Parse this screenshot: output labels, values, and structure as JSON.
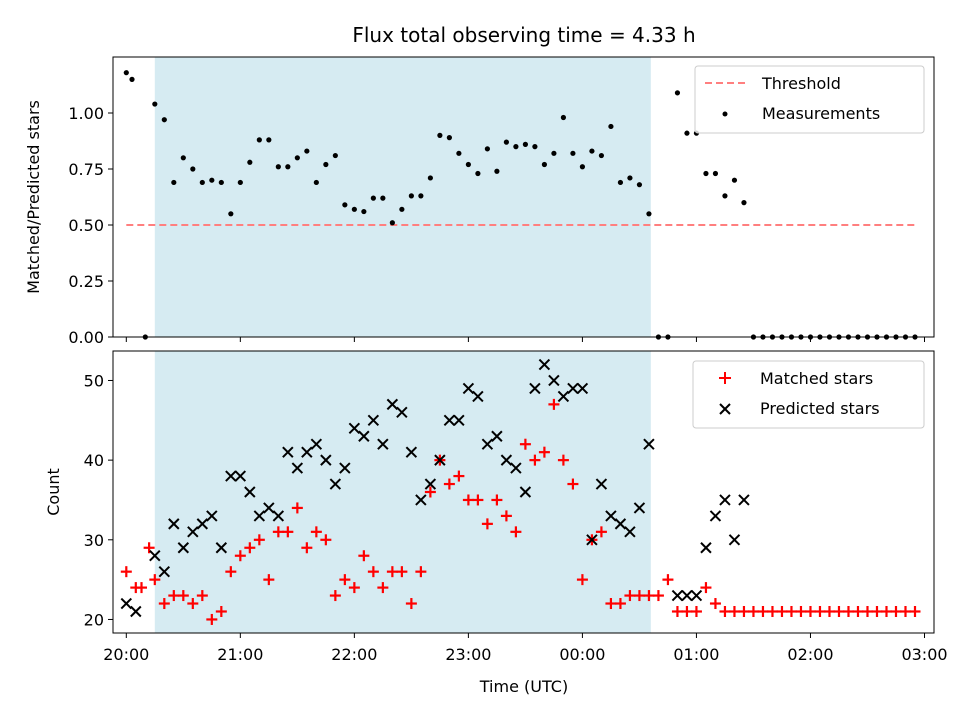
{
  "title": "Flux total observing time = 4.33 h",
  "xlabel": "Time (UTC)",
  "shade_color": "#add8e6",
  "top": {
    "ylabel": "Matched/Predicted stars",
    "legend": [
      "Threshold",
      "Measurements"
    ]
  },
  "bottom": {
    "ylabel": "Count",
    "legend": [
      "Matched stars",
      "Predicted stars"
    ]
  },
  "chart_data": [
    {
      "type": "scatter",
      "title": "Flux total observing time = 4.33 h",
      "xlabel": "",
      "ylabel": "Matched/Predicted stars",
      "xlim": [
        "19:53",
        "03:05"
      ],
      "ylim": [
        0,
        1.25
      ],
      "x_ticks": [
        "20:00",
        "21:00",
        "22:00",
        "23:00",
        "00:00",
        "01:00",
        "02:00",
        "03:00"
      ],
      "y_ticks": [
        "0.00",
        "0.25",
        "0.50",
        "0.75",
        "1.00"
      ],
      "shaded_interval": [
        "20:15",
        "00:36"
      ],
      "legend_position": "top-right",
      "threshold": {
        "name": "Threshold",
        "value": 0.5,
        "x_range": [
          "20:00",
          "02:55"
        ],
        "color": "#ff7f7f",
        "style": "dashed"
      },
      "series": [
        {
          "name": "Measurements",
          "color": "#000000",
          "x": [
            "20:00",
            "20:03",
            "20:10",
            "20:15",
            "20:20",
            "20:25",
            "20:30",
            "20:35",
            "20:40",
            "20:45",
            "20:50",
            "20:55",
            "21:00",
            "21:05",
            "21:10",
            "21:15",
            "21:20",
            "21:25",
            "21:30",
            "21:35",
            "21:40",
            "21:45",
            "21:50",
            "21:55",
            "22:00",
            "22:05",
            "22:10",
            "22:15",
            "22:20",
            "22:25",
            "22:30",
            "22:35",
            "22:40",
            "22:45",
            "22:50",
            "22:55",
            "23:00",
            "23:05",
            "23:10",
            "23:15",
            "23:20",
            "23:25",
            "23:30",
            "23:35",
            "23:40",
            "23:45",
            "23:50",
            "23:55",
            "00:00",
            "00:05",
            "00:10",
            "00:15",
            "00:20",
            "00:25",
            "00:30",
            "00:35",
            "00:40",
            "00:45",
            "00:50",
            "00:55",
            "01:00",
            "01:05",
            "01:10",
            "01:15",
            "01:20",
            "01:25",
            "01:30",
            "01:35",
            "01:40",
            "01:45",
            "01:50",
            "01:55",
            "02:00",
            "02:05",
            "02:10",
            "02:15",
            "02:20",
            "02:25",
            "02:30",
            "02:35",
            "02:40",
            "02:45",
            "02:50",
            "02:55"
          ],
          "y": [
            1.18,
            1.15,
            0.0,
            1.04,
            0.97,
            0.69,
            0.8,
            0.75,
            0.69,
            0.7,
            0.69,
            0.55,
            0.69,
            0.78,
            0.88,
            0.88,
            0.76,
            0.76,
            0.8,
            0.83,
            0.69,
            0.77,
            0.81,
            0.59,
            0.57,
            0.56,
            0.62,
            0.62,
            0.51,
            0.57,
            0.63,
            0.63,
            0.71,
            0.9,
            0.89,
            0.82,
            0.77,
            0.73,
            0.84,
            0.74,
            0.87,
            0.85,
            0.86,
            0.85,
            0.77,
            0.82,
            0.98,
            0.82,
            0.76,
            0.83,
            0.81,
            0.94,
            0.69,
            0.71,
            0.68,
            0.55,
            0.0,
            0.0,
            1.09,
            0.91,
            0.91,
            0.73,
            0.73,
            0.63,
            0.7,
            0.6,
            0.0,
            0.0,
            0.0,
            0.0,
            0.0,
            0.0,
            0.0,
            0.0,
            0.0,
            0.0,
            0.0,
            0.0,
            0.0,
            0.0,
            0.0,
            0.0,
            0.0,
            0.0
          ]
        }
      ]
    },
    {
      "type": "scatter",
      "title": "",
      "xlabel": "Time (UTC)",
      "ylabel": "Count",
      "xlim": [
        "19:53",
        "03:05"
      ],
      "ylim": [
        18.3,
        53.7
      ],
      "x_ticks": [
        "20:00",
        "21:00",
        "22:00",
        "23:00",
        "00:00",
        "01:00",
        "02:00",
        "03:00"
      ],
      "y_ticks": [
        "20",
        "30",
        "40",
        "50"
      ],
      "shaded_interval": [
        "20:15",
        "00:36"
      ],
      "legend_position": "top-right",
      "series": [
        {
          "name": "Matched stars",
          "color": "#ff0000",
          "marker": "+",
          "x": [
            "20:00",
            "20:05",
            "20:08",
            "20:12",
            "20:15",
            "20:20",
            "20:25",
            "20:30",
            "20:35",
            "20:40",
            "20:45",
            "20:50",
            "20:55",
            "21:00",
            "21:05",
            "21:10",
            "21:15",
            "21:20",
            "21:25",
            "21:30",
            "21:35",
            "21:40",
            "21:45",
            "21:50",
            "21:55",
            "22:00",
            "22:05",
            "22:10",
            "22:15",
            "22:20",
            "22:25",
            "22:30",
            "22:35",
            "22:40",
            "22:45",
            "22:50",
            "22:55",
            "23:00",
            "23:05",
            "23:10",
            "23:15",
            "23:20",
            "23:25",
            "23:30",
            "23:35",
            "23:40",
            "23:45",
            "23:50",
            "23:55",
            "00:00",
            "00:05",
            "00:10",
            "00:15",
            "00:20",
            "00:25",
            "00:30",
            "00:35",
            "00:40",
            "00:45",
            "00:50",
            "00:55",
            "01:00",
            "01:05",
            "01:10",
            "01:15",
            "01:20",
            "01:25",
            "01:30",
            "01:35",
            "01:40",
            "01:45",
            "01:50",
            "01:55",
            "02:00",
            "02:05",
            "02:10",
            "02:15",
            "02:20",
            "02:25",
            "02:30",
            "02:35",
            "02:40",
            "02:45",
            "02:50",
            "02:55"
          ],
          "y": [
            26,
            24,
            24,
            29,
            25,
            22,
            23,
            23,
            22,
            23,
            20,
            21,
            26,
            28,
            29,
            30,
            25,
            31,
            31,
            34,
            29,
            31,
            30,
            23,
            25,
            24,
            28,
            26,
            24,
            26,
            26,
            22,
            26,
            36,
            40,
            37,
            38,
            35,
            35,
            32,
            35,
            33,
            31,
            42,
            40,
            41,
            47,
            40,
            37,
            25,
            30,
            31,
            22,
            22,
            23,
            23,
            23,
            23,
            25,
            21,
            21,
            21,
            24,
            22,
            21,
            21,
            21,
            21,
            21,
            21,
            21,
            21,
            21,
            21,
            21,
            21,
            21,
            21,
            21,
            21,
            21,
            21,
            21,
            21,
            21
          ]
        },
        {
          "name": "Predicted stars",
          "color": "#000000",
          "marker": "x",
          "x": [
            "20:00",
            "20:05",
            "20:15",
            "20:20",
            "20:25",
            "20:30",
            "20:35",
            "20:40",
            "20:45",
            "20:50",
            "20:55",
            "21:00",
            "21:05",
            "21:10",
            "21:15",
            "21:20",
            "21:25",
            "21:30",
            "21:35",
            "21:40",
            "21:45",
            "21:50",
            "21:55",
            "22:00",
            "22:05",
            "22:10",
            "22:15",
            "22:20",
            "22:25",
            "22:30",
            "22:35",
            "22:40",
            "22:45",
            "22:50",
            "22:55",
            "23:00",
            "23:05",
            "23:10",
            "23:15",
            "23:20",
            "23:25",
            "23:30",
            "23:35",
            "23:40",
            "23:45",
            "23:50",
            "23:55",
            "00:00",
            "00:05",
            "00:10",
            "00:15",
            "00:20",
            "00:25",
            "00:30",
            "00:35",
            "00:50",
            "00:55",
            "01:00",
            "01:05",
            "01:10",
            "01:15",
            "01:20",
            "01:25"
          ],
          "y": [
            22,
            21,
            28,
            26,
            32,
            29,
            31,
            32,
            33,
            29,
            38,
            38,
            36,
            33,
            34,
            33,
            41,
            39,
            41,
            42,
            40,
            37,
            39,
            44,
            43,
            45,
            42,
            47,
            46,
            41,
            35,
            37,
            40,
            45,
            45,
            49,
            48,
            42,
            43,
            40,
            39,
            36,
            49,
            52,
            50,
            48,
            49,
            49,
            30,
            37,
            33,
            32,
            31,
            34,
            42,
            23,
            23,
            23,
            29,
            33,
            35,
            30,
            35
          ]
        }
      ]
    }
  ]
}
